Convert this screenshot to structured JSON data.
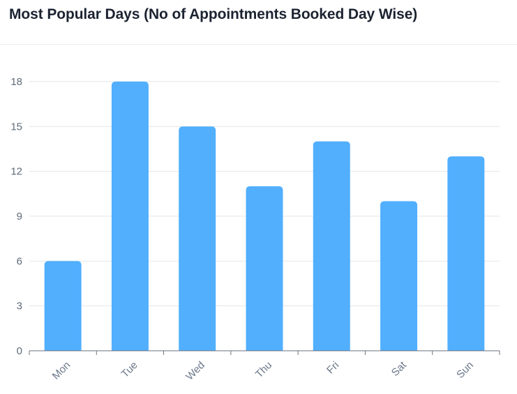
{
  "card": {
    "title": "Most Popular Days (No of Appointments Booked Day Wise)"
  },
  "colors": {
    "bar": "#51affe",
    "grid": "#e3e6ea",
    "axis": "#6b7280",
    "tick_text": "#5f6b7a",
    "title_text": "#1c2331"
  },
  "chart_data": {
    "type": "bar",
    "title": "Most Popular Days (No of Appointments Booked Day Wise)",
    "xlabel": "",
    "ylabel": "",
    "categories": [
      "Mon",
      "Tue",
      "Wed",
      "Thu",
      "Fri",
      "Sat",
      "Sun"
    ],
    "values": [
      6,
      18,
      15,
      11,
      14,
      10,
      13
    ],
    "ylim": [
      0,
      18
    ],
    "yticks": [
      0,
      3,
      6,
      9,
      12,
      15,
      18
    ],
    "grid": true,
    "legend": "none",
    "x_tick_rotation_deg": -45
  }
}
